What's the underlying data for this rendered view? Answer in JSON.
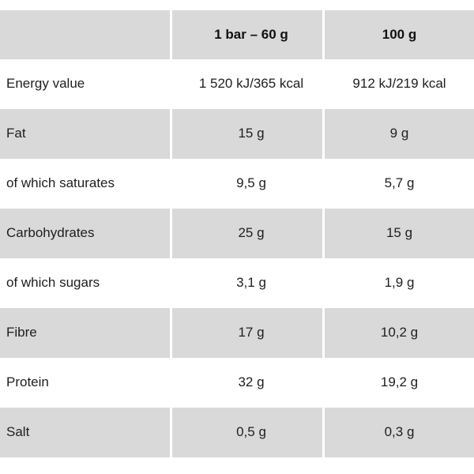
{
  "colors": {
    "shaded_row_bg": "#d9d9d9",
    "plain_row_bg": "#ffffff",
    "text": "#1e1e1e",
    "header_text": "#111111"
  },
  "table": {
    "header": {
      "label_col": "",
      "per_bar_col": "1 bar – 60 g",
      "per_100g_col": "100 g"
    },
    "rows": [
      {
        "label": "Energy value",
        "per_bar": "1 520 kJ/365 kcal",
        "per_100g": "912 kJ/219 kcal"
      },
      {
        "label": "Fat",
        "per_bar": "15 g",
        "per_100g": "9 g"
      },
      {
        "label": "of which saturates",
        "per_bar": "9,5 g",
        "per_100g": "5,7 g"
      },
      {
        "label": "Carbohydrates",
        "per_bar": "25 g",
        "per_100g": "15 g"
      },
      {
        "label": "of which sugars",
        "per_bar": "3,1 g",
        "per_100g": "1,9 g"
      },
      {
        "label": "Fibre",
        "per_bar": "17 g",
        "per_100g": "10,2 g"
      },
      {
        "label": "Protein",
        "per_bar": "32 g",
        "per_100g": "19,2 g"
      },
      {
        "label": "Salt",
        "per_bar": "0,5 g",
        "per_100g": "0,3 g"
      }
    ]
  },
  "chart_data": {
    "type": "table",
    "title": "Nutrition values table",
    "columns": [
      "",
      "1 bar – 60 g",
      "100 g"
    ],
    "rows": [
      [
        "Energy value",
        "1 520 kJ/365 kcal",
        "912 kJ/219 kcal"
      ],
      [
        "Fat",
        "15 g",
        "9 g"
      ],
      [
        "of which saturates",
        "9,5 g",
        "5,7 g"
      ],
      [
        "Carbohydrates",
        "25 g",
        "15 g"
      ],
      [
        "of which sugars",
        "3,1 g",
        "1,9 g"
      ],
      [
        "Fibre",
        "17 g",
        "10,2 g"
      ],
      [
        "Protein",
        "32 g",
        "19,2 g"
      ],
      [
        "Salt",
        "0,5 g",
        "0,3 g"
      ]
    ],
    "layout_hints": {
      "striped_rows": [
        "Fat",
        "Carbohydrates",
        "Fibre",
        "Salt"
      ],
      "header_shaded": true,
      "value_columns_alignment": "center",
      "label_column_alignment": "left"
    }
  }
}
